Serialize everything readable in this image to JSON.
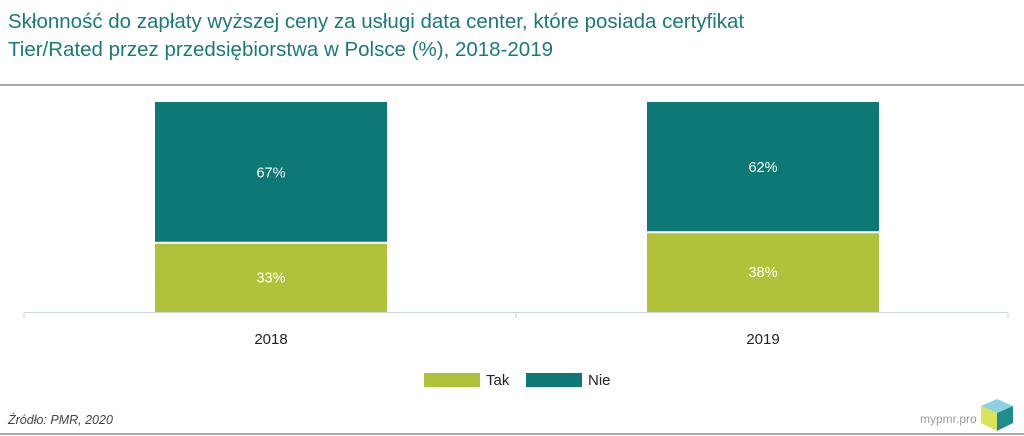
{
  "title_line1": "Skłonność do zapłaty wyższej ceny za usługi data center, które posiada certyfikat",
  "title_line2": "Tier/Rated przez przedsiębiorstwa w Polsce (%), 2018-2019",
  "source": "Źródło: PMR, 2020",
  "brand": "mypmr.pro",
  "colors": {
    "tak": "#b0c23a",
    "nie": "#0e7876",
    "title": "#1a7a78"
  },
  "chart_data": {
    "type": "bar",
    "stacked": true,
    "categories": [
      "2018",
      "2019"
    ],
    "series": [
      {
        "name": "Tak",
        "values": [
          33,
          38
        ],
        "labels": [
          "33%",
          "38%"
        ]
      },
      {
        "name": "Nie",
        "values": [
          67,
          62
        ],
        "labels": [
          "67%",
          "62%"
        ]
      }
    ],
    "ylim": [
      0,
      100
    ],
    "legend_position": "bottom-center"
  }
}
